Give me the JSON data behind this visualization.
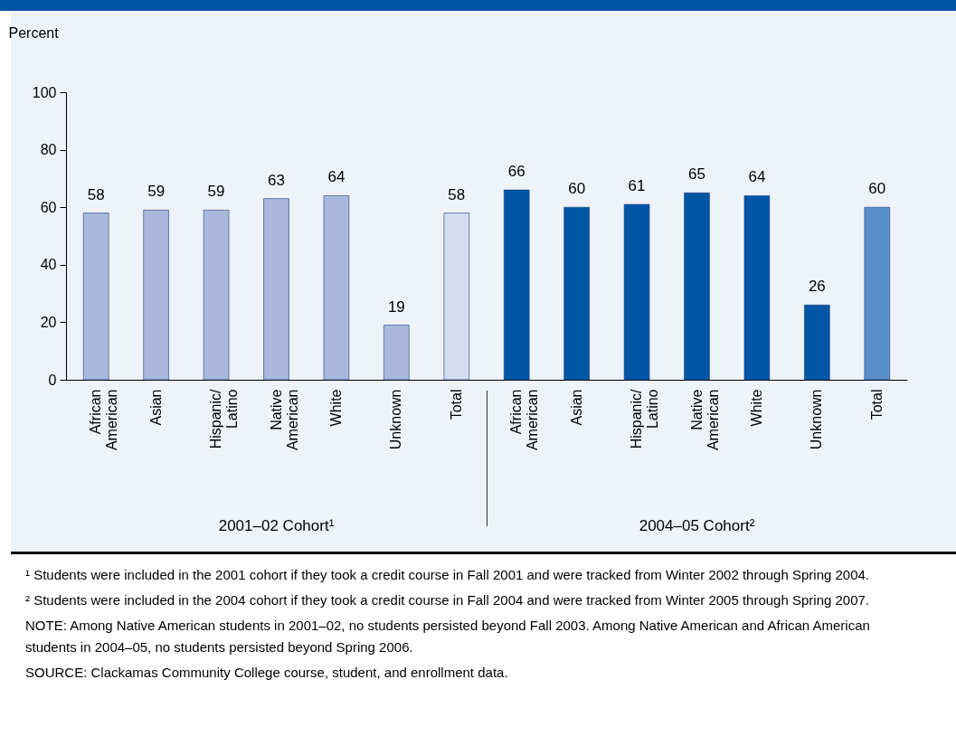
{
  "chart_data": {
    "type": "bar",
    "ylabel": "Percent",
    "categories": [
      "African American",
      "Asian",
      "Hispanic/Latino",
      "Native American",
      "White",
      "Unknown",
      "Total",
      "African American",
      "Asian",
      "Hispanic/Latino",
      "Native American",
      "White",
      "Unknown",
      "Total"
    ],
    "values": [
      58,
      59,
      59,
      63,
      64,
      19,
      58,
      66,
      60,
      61,
      65,
      64,
      26,
      60
    ],
    "colors": [
      "#aab8dc",
      "#aab8dc",
      "#aab8dc",
      "#aab8dc",
      "#aab8dc",
      "#aab8dc",
      "#d3dcf0",
      "#0055a5",
      "#0055a5",
      "#0055a5",
      "#0055a5",
      "#0055a5",
      "#0055a5",
      "#5a8fcc"
    ],
    "ylim": [
      0,
      100
    ],
    "yticks": [
      0,
      20,
      40,
      60,
      80,
      100
    ],
    "data_labels": true,
    "annotations": [
      "2001–02 Cohort¹",
      "2004–05 Cohort²",
      "¹ Students were included in the 2001 cohort if they took a credit course in Fall 2001 and were tracked from Winter 2002 through Spring 2004.",
      "² Students were included in the 2004 cohort if they took a credit course in Fall 2004 and were tracked from Winter 2005 through Spring 2007.",
      "NOTE: Among Native American students in 2001–02, no students persisted beyond Fall 2003. Among Native American and African American students in 2004–05, no students persisted beyond Spring 2006.",
      "SOURCE: Clackamas Community College course, student, and enrollment data."
    ]
  }
}
